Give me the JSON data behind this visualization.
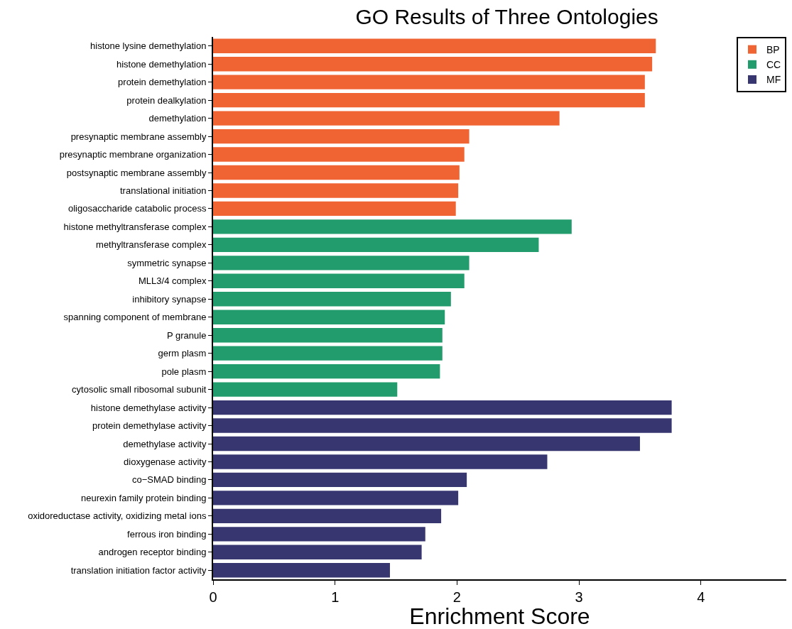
{
  "chart_data": {
    "type": "bar",
    "orientation": "horizontal",
    "title": "GO Results of Three Ontologies",
    "xlabel": "Enrichment Score",
    "categories": [
      "histone lysine demethylation",
      "histone demethylation",
      "protein demethylation",
      "protein dealkylation",
      "demethylation",
      "presynaptic membrane assembly",
      "presynaptic membrane organization",
      "postsynaptic membrane assembly",
      "translational initiation",
      "oligosaccharide catabolic process",
      "histone methyltransferase complex",
      "methyltransferase complex",
      "symmetric synapse",
      "MLL3/4 complex",
      "inhibitory synapse",
      "spanning component of membrane",
      "P granule",
      "germ plasm",
      "pole plasm",
      "cytosolic small ribosomal subunit",
      "histone demethylase activity",
      "protein demethylase activity",
      "demethylase activity",
      "dioxygenase activity",
      "co−SMAD binding",
      "neurexin family protein binding",
      "oxidoreductase activity, oxidizing metal ions",
      "ferrous iron binding",
      "androgen receptor binding",
      "translation initiation factor activity"
    ],
    "series": [
      {
        "name": "BP",
        "color": "#f06433",
        "values": [
          3.63,
          3.6,
          3.54,
          3.54,
          2.84,
          2.1,
          2.06,
          2.02,
          2.01,
          1.99,
          null,
          null,
          null,
          null,
          null,
          null,
          null,
          null,
          null,
          null,
          null,
          null,
          null,
          null,
          null,
          null,
          null,
          null,
          null,
          null
        ]
      },
      {
        "name": "CC",
        "color": "#229b6d",
        "values": [
          null,
          null,
          null,
          null,
          null,
          null,
          null,
          null,
          null,
          null,
          2.94,
          2.67,
          2.1,
          2.06,
          1.95,
          1.9,
          1.88,
          1.88,
          1.86,
          1.51,
          null,
          null,
          null,
          null,
          null,
          null,
          null,
          null,
          null,
          null
        ]
      },
      {
        "name": "MF",
        "color": "#383671",
        "values": [
          null,
          null,
          null,
          null,
          null,
          null,
          null,
          null,
          null,
          null,
          null,
          null,
          null,
          null,
          null,
          null,
          null,
          null,
          null,
          null,
          3.76,
          3.76,
          3.5,
          2.74,
          2.08,
          2.01,
          1.87,
          1.74,
          1.71,
          1.45
        ]
      }
    ],
    "xlim": [
      0,
      4.7
    ],
    "xticks": [
      0,
      1,
      2,
      3,
      4
    ],
    "legend": "top right"
  }
}
